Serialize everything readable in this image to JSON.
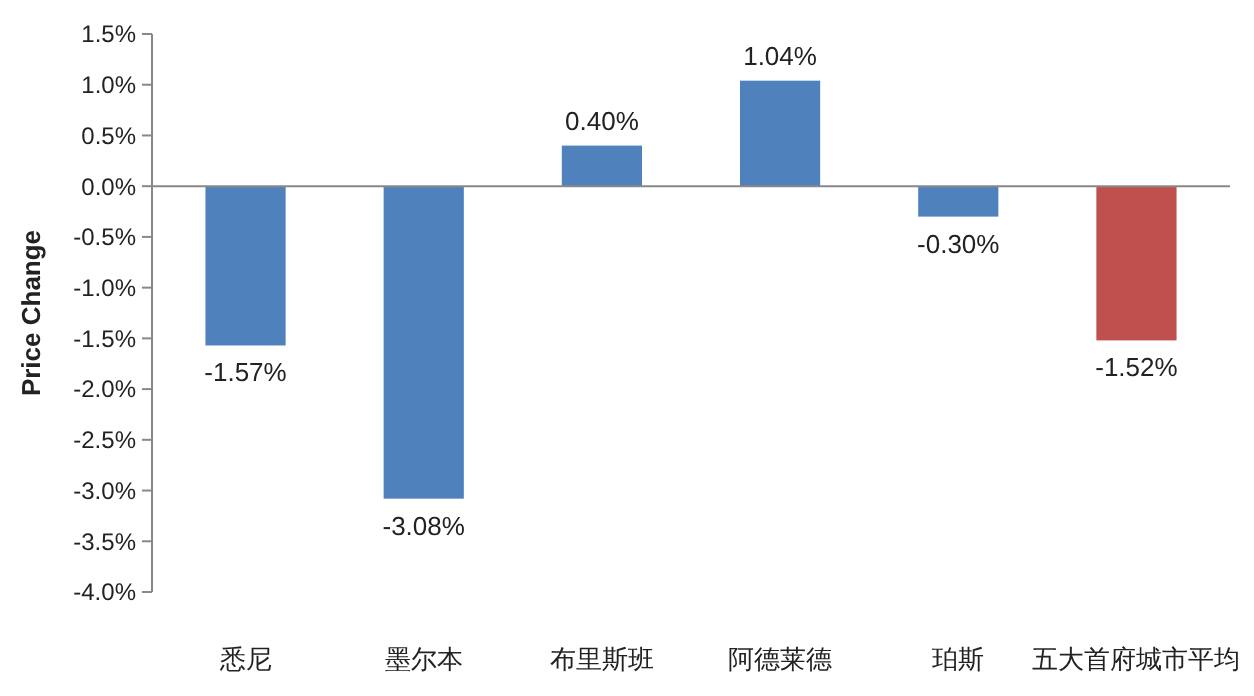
{
  "chart_data": {
    "type": "bar",
    "ylabel": "Price Change",
    "categories": [
      "悉尼",
      "墨尔本",
      "布里斯班",
      "阿德莱德",
      "珀斯",
      "五大首府城市平均"
    ],
    "values": [
      -1.57,
      -3.08,
      0.4,
      1.04,
      -0.3,
      -1.52
    ],
    "colors": [
      "#4f81bd",
      "#4f81bd",
      "#4f81bd",
      "#4f81bd",
      "#4f81bd",
      "#c0504d"
    ],
    "value_labels": [
      "-1.57%",
      "-3.08%",
      "0.40%",
      "1.04%",
      "-0.30%",
      "-1.52%"
    ],
    "ylim": [
      -4.0,
      1.5
    ],
    "yticks": [
      {
        "value": 1.5,
        "label": "1.5%"
      },
      {
        "value": 1.0,
        "label": "1.0%"
      },
      {
        "value": 0.5,
        "label": "0.5%"
      },
      {
        "value": 0,
        "label": "0.0%"
      },
      {
        "value": -0.5,
        "label": "-0.5%"
      },
      {
        "value": -1.0,
        "label": "-1.0%"
      },
      {
        "value": -1.5,
        "label": "-1.5%"
      },
      {
        "value": -2.0,
        "label": "-2.0%"
      },
      {
        "value": -2.5,
        "label": "-2.5%"
      },
      {
        "value": -3.0,
        "label": "-3.0%"
      },
      {
        "value": -3.5,
        "label": "-3.5%"
      },
      {
        "value": -4.0,
        "label": "-4.0%"
      }
    ]
  }
}
